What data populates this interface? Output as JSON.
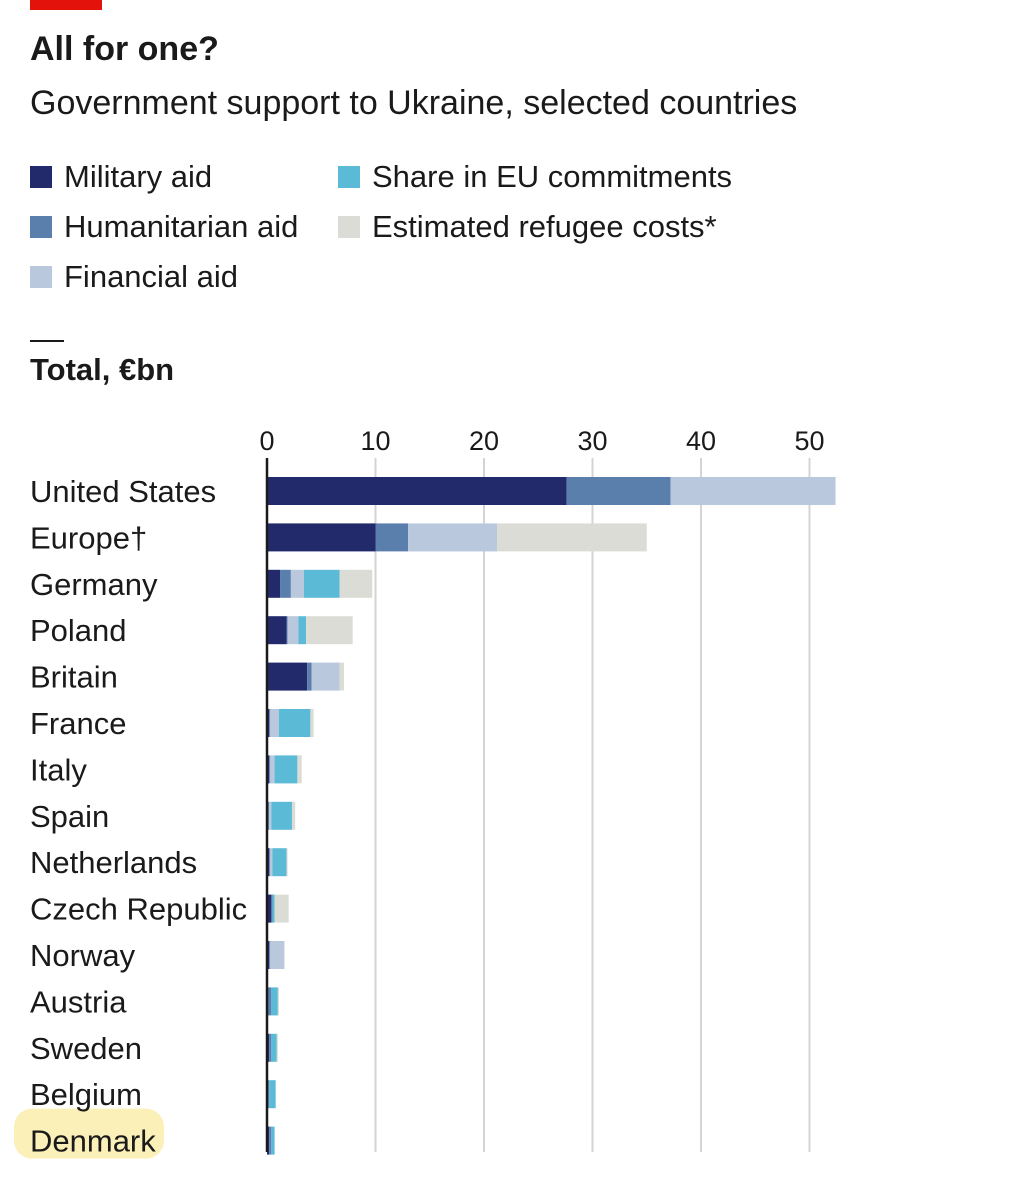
{
  "header": {
    "title": "All for one?",
    "subtitle": "Government support to Ukraine, selected countries",
    "unit_label": "Total, €bn"
  },
  "legend": [
    {
      "label": "Military aid",
      "color": "#222a6b"
    },
    {
      "label": "Humanitarian aid",
      "color": "#5b7fad"
    },
    {
      "label": "Financial aid",
      "color": "#b9c8dc"
    },
    {
      "label": "Share in EU commitments",
      "color": "#5bbad5"
    },
    {
      "label": "Estimated refugee costs*",
      "color": "#dcdcd6"
    }
  ],
  "highlight_category": "Denmark",
  "highlight_color": "#fbf0b8",
  "chart_data": {
    "type": "bar",
    "orientation": "horizontal",
    "stacked": true,
    "title": "All for one?",
    "subtitle": "Government support to Ukraine, selected countries",
    "xlabel": "Total, €bn",
    "xlim": [
      0,
      53
    ],
    "xticks": [
      0,
      10,
      20,
      30,
      40,
      50
    ],
    "grid": true,
    "categories": [
      "United States",
      "Europe†",
      "Germany",
      "Poland",
      "Britain",
      "France",
      "Italy",
      "Spain",
      "Netherlands",
      "Czech Republic",
      "Norway",
      "Austria",
      "Sweden",
      "Belgium",
      "Denmark"
    ],
    "series": [
      {
        "name": "Military aid",
        "color": "#222a6b",
        "values": [
          27.6,
          10.0,
          1.2,
          1.8,
          3.7,
          0.2,
          0.2,
          0.1,
          0.2,
          0.4,
          0.2,
          0.0,
          0.2,
          0.1,
          0.2
        ]
      },
      {
        "name": "Humanitarian aid",
        "color": "#5b7fad",
        "values": [
          9.6,
          3.0,
          1.0,
          0.1,
          0.4,
          0.1,
          0.1,
          0.1,
          0.1,
          0.1,
          0.1,
          0.4,
          0.2,
          0.1,
          0.2
        ]
      },
      {
        "name": "Financial aid",
        "color": "#b9c8dc",
        "values": [
          15.2,
          8.2,
          1.2,
          1.0,
          2.6,
          0.8,
          0.4,
          0.2,
          0.2,
          0.0,
          1.3,
          0.0,
          0.0,
          0.0,
          0.0
        ]
      },
      {
        "name": "Share in EU commitments",
        "color": "#5bbad5",
        "values": [
          0.0,
          0.0,
          3.3,
          0.7,
          0.0,
          2.9,
          2.1,
          1.9,
          1.3,
          0.2,
          0.0,
          0.6,
          0.5,
          0.6,
          0.3
        ]
      },
      {
        "name": "Estimated refugee costs*",
        "color": "#dcdcd6",
        "values": [
          0.0,
          13.8,
          3.0,
          4.3,
          0.4,
          0.3,
          0.4,
          0.3,
          0.1,
          1.3,
          0.0,
          0.1,
          0.1,
          0.0,
          0.0
        ]
      }
    ]
  }
}
